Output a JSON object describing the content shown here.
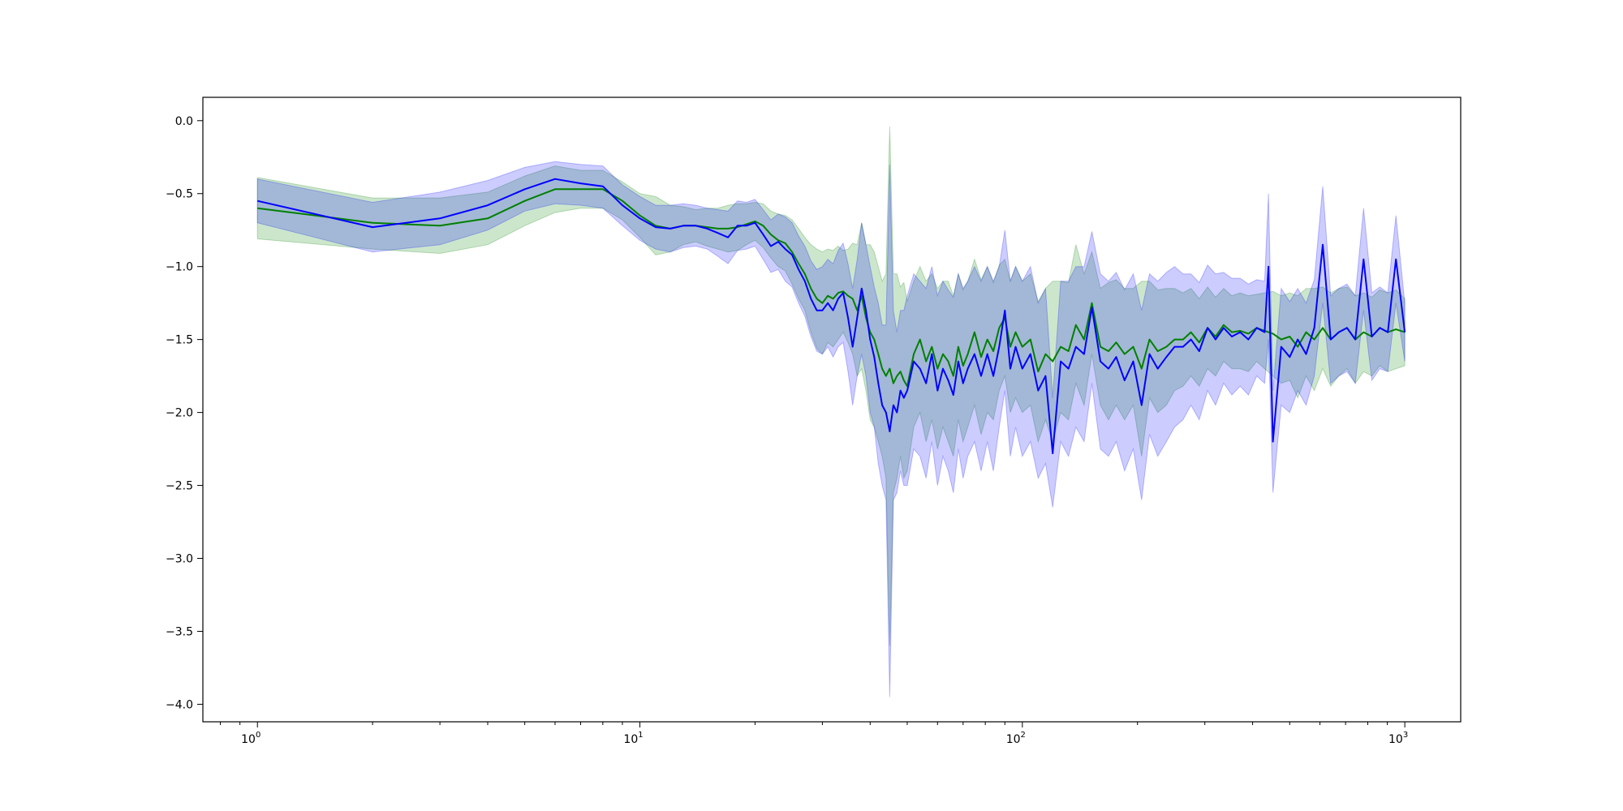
{
  "chart_data": {
    "type": "line",
    "title": "",
    "xlabel": "",
    "ylabel": "",
    "x_scale": "log",
    "xlim": [
      0.72,
      1400
    ],
    "ylim": [
      -4.12,
      0.16
    ],
    "grid": false,
    "x_ticks": [
      {
        "value": 1,
        "base": "10",
        "exp": "0"
      },
      {
        "value": 10,
        "base": "10",
        "exp": "1"
      },
      {
        "value": 100,
        "base": "10",
        "exp": "2"
      },
      {
        "value": 1000,
        "base": "10",
        "exp": "3"
      }
    ],
    "y_ticks": [
      {
        "value": 0.0,
        "label": "0.0"
      },
      {
        "value": -0.5,
        "label": "−0.5"
      },
      {
        "value": -1.0,
        "label": "−1.0"
      },
      {
        "value": -1.5,
        "label": "−1.5"
      },
      {
        "value": -2.0,
        "label": "−2.0"
      },
      {
        "value": -2.5,
        "label": "−2.5"
      },
      {
        "value": -3.0,
        "label": "−3.0"
      },
      {
        "value": -3.5,
        "label": "−3.5"
      },
      {
        "value": -4.0,
        "label": "−4.0"
      }
    ],
    "series": [
      {
        "color": "#008000",
        "band_color": "#008000",
        "band_opacity": 0.2,
        "x": [
          1,
          2,
          3,
          4,
          5,
          6,
          7,
          8,
          9,
          10,
          11,
          12,
          13,
          14,
          15,
          16,
          17,
          18,
          19,
          20,
          21,
          22,
          23,
          24,
          25,
          26,
          27,
          28,
          29,
          30,
          31,
          32,
          33,
          34,
          35,
          36,
          37,
          38,
          39,
          40,
          41,
          42,
          43,
          44,
          45,
          46,
          47,
          48,
          49,
          50,
          52,
          54,
          56,
          58,
          60,
          62,
          64,
          66,
          68,
          70,
          72,
          75,
          78,
          81,
          84,
          87,
          90,
          93,
          96,
          100,
          105,
          110,
          115,
          120,
          126,
          132,
          138,
          145,
          152,
          160,
          168,
          176,
          185,
          195,
          205,
          215,
          226,
          238,
          250,
          263,
          276,
          290,
          305,
          320,
          336,
          353,
          371,
          390,
          410,
          430,
          452,
          475,
          500,
          525,
          552,
          580,
          610,
          640,
          672,
          706,
          742,
          780,
          820,
          860,
          903,
          948,
          1000
        ],
        "y": [
          -0.6,
          -0.7,
          -0.72,
          -0.67,
          -0.55,
          -0.47,
          -0.47,
          -0.47,
          -0.55,
          -0.65,
          -0.72,
          -0.74,
          -0.72,
          -0.72,
          -0.73,
          -0.74,
          -0.74,
          -0.73,
          -0.71,
          -0.69,
          -0.72,
          -0.78,
          -0.82,
          -0.84,
          -0.9,
          -0.98,
          -1.05,
          -1.15,
          -1.22,
          -1.25,
          -1.2,
          -1.22,
          -1.18,
          -1.17,
          -1.2,
          -1.22,
          -1.3,
          -1.2,
          -1.35,
          -1.45,
          -1.5,
          -1.6,
          -1.7,
          -1.75,
          -1.7,
          -1.8,
          -1.75,
          -1.72,
          -1.78,
          -1.82,
          -1.6,
          -1.5,
          -1.65,
          -1.55,
          -1.7,
          -1.6,
          -1.65,
          -1.75,
          -1.55,
          -1.68,
          -1.6,
          -1.45,
          -1.62,
          -1.5,
          -1.58,
          -1.42,
          -1.35,
          -1.55,
          -1.45,
          -1.55,
          -1.5,
          -1.72,
          -1.6,
          -1.65,
          -1.55,
          -1.58,
          -1.4,
          -1.5,
          -1.25,
          -1.55,
          -1.58,
          -1.52,
          -1.6,
          -1.55,
          -1.7,
          -1.5,
          -1.58,
          -1.55,
          -1.5,
          -1.5,
          -1.45,
          -1.52,
          -1.42,
          -1.48,
          -1.4,
          -1.45,
          -1.44,
          -1.46,
          -1.42,
          -1.44,
          -1.46,
          -1.5,
          -1.48,
          -1.55,
          -1.45,
          -1.5,
          -1.42,
          -1.5,
          -1.45,
          -1.42,
          -1.5,
          -1.45,
          -1.48,
          -1.42,
          -1.45,
          -1.43,
          -1.45
        ],
        "lower": [
          -0.81,
          -0.88,
          -0.91,
          -0.85,
          -0.72,
          -0.63,
          -0.6,
          -0.6,
          -0.68,
          -0.8,
          -0.92,
          -0.9,
          -0.85,
          -0.83,
          -0.86,
          -0.88,
          -0.9,
          -0.89,
          -0.85,
          -0.82,
          -0.87,
          -0.94,
          -1.0,
          -1.03,
          -1.12,
          -1.22,
          -1.3,
          -1.45,
          -1.56,
          -1.6,
          -1.52,
          -1.55,
          -1.5,
          -1.45,
          -1.52,
          -1.6,
          -1.75,
          -1.7,
          -1.85,
          -2.05,
          -2.1,
          -2.2,
          -2.3,
          -2.45,
          -3.6,
          -2.55,
          -2.45,
          -2.3,
          -2.45,
          -2.4,
          -2.1,
          -2.0,
          -2.2,
          -2.05,
          -2.25,
          -2.1,
          -2.2,
          -2.3,
          -2.05,
          -2.2,
          -2.1,
          -1.95,
          -2.15,
          -2.0,
          -2.05,
          -1.85,
          -1.75,
          -2.0,
          -1.9,
          -2.0,
          -1.95,
          -2.2,
          -2.05,
          -2.2,
          -2.0,
          -2.05,
          -1.8,
          -1.95,
          -1.6,
          -1.95,
          -2.05,
          -1.95,
          -2.05,
          -1.95,
          -2.3,
          -1.9,
          -2.0,
          -1.95,
          -1.85,
          -1.82,
          -1.75,
          -1.82,
          -1.7,
          -1.75,
          -1.65,
          -1.7,
          -1.7,
          -1.72,
          -1.65,
          -1.7,
          -1.75,
          -1.8,
          -1.78,
          -1.9,
          -1.75,
          -1.85,
          -1.7,
          -1.82,
          -1.75,
          -1.7,
          -1.8,
          -1.72,
          -1.75,
          -1.68,
          -1.72,
          -1.7,
          -1.68
        ],
        "upper": [
          -0.39,
          -0.53,
          -0.53,
          -0.49,
          -0.38,
          -0.31,
          -0.34,
          -0.34,
          -0.42,
          -0.5,
          -0.52,
          -0.58,
          -0.59,
          -0.61,
          -0.6,
          -0.6,
          -0.58,
          -0.57,
          -0.57,
          -0.56,
          -0.57,
          -0.62,
          -0.64,
          -0.65,
          -0.68,
          -0.74,
          -0.8,
          -0.85,
          -0.88,
          -0.9,
          -0.88,
          -0.89,
          -0.86,
          -0.89,
          -0.88,
          -0.84,
          -0.85,
          -0.7,
          -0.85,
          -0.85,
          -0.9,
          -1.0,
          -1.1,
          -1.05,
          -0.04,
          -1.05,
          -1.05,
          -1.14,
          -1.11,
          -1.24,
          -1.1,
          -1.0,
          -1.1,
          -1.05,
          -1.15,
          -1.1,
          -1.1,
          -1.2,
          -1.05,
          -1.16,
          -1.1,
          -0.95,
          -1.09,
          -1.0,
          -1.11,
          -0.99,
          -0.95,
          -1.1,
          -1.0,
          -1.1,
          -1.05,
          -1.24,
          -1.15,
          -1.1,
          -1.1,
          -1.11,
          -0.85,
          -1.05,
          -0.9,
          -1.15,
          -1.11,
          -1.09,
          -1.15,
          -1.15,
          -1.1,
          -1.1,
          -1.16,
          -1.15,
          -1.15,
          -1.18,
          -1.15,
          -1.22,
          -1.14,
          -1.21,
          -1.15,
          -1.2,
          -1.18,
          -1.2,
          -1.19,
          -1.18,
          -1.17,
          -1.2,
          -1.18,
          -1.2,
          -1.15,
          -1.15,
          -1.14,
          -1.18,
          -1.15,
          -1.14,
          -1.2,
          -1.18,
          -1.21,
          -1.16,
          -1.18,
          -1.16,
          -1.22
        ]
      },
      {
        "color": "#0000ff",
        "band_color": "#0000ff",
        "band_opacity": 0.2,
        "x": [
          1,
          2,
          3,
          4,
          5,
          6,
          7,
          8,
          9,
          10,
          11,
          12,
          13,
          14,
          15,
          16,
          17,
          18,
          19,
          20,
          21,
          22,
          23,
          24,
          25,
          26,
          27,
          28,
          29,
          30,
          31,
          32,
          33,
          34,
          35,
          36,
          37,
          38,
          39,
          40,
          41,
          42,
          43,
          44,
          45,
          46,
          47,
          48,
          49,
          50,
          52,
          54,
          56,
          58,
          60,
          62,
          64,
          66,
          68,
          70,
          72,
          75,
          78,
          81,
          84,
          87,
          90,
          93,
          96,
          100,
          105,
          110,
          115,
          120,
          126,
          132,
          138,
          145,
          152,
          160,
          168,
          176,
          185,
          195,
          205,
          215,
          226,
          238,
          250,
          263,
          276,
          290,
          305,
          320,
          336,
          353,
          371,
          390,
          410,
          430,
          440,
          452,
          475,
          500,
          525,
          552,
          580,
          610,
          640,
          672,
          706,
          742,
          780,
          820,
          860,
          903,
          948,
          1000
        ],
        "y": [
          -0.55,
          -0.73,
          -0.67,
          -0.58,
          -0.47,
          -0.4,
          -0.43,
          -0.45,
          -0.58,
          -0.67,
          -0.73,
          -0.74,
          -0.72,
          -0.72,
          -0.74,
          -0.77,
          -0.8,
          -0.72,
          -0.72,
          -0.7,
          -0.78,
          -0.86,
          -0.83,
          -0.88,
          -0.92,
          -1.02,
          -1.1,
          -1.22,
          -1.3,
          -1.3,
          -1.25,
          -1.3,
          -1.22,
          -1.18,
          -1.35,
          -1.55,
          -1.35,
          -1.15,
          -1.3,
          -1.5,
          -1.62,
          -1.8,
          -1.95,
          -2.0,
          -2.13,
          -1.95,
          -2.0,
          -1.85,
          -1.9,
          -1.85,
          -1.65,
          -1.7,
          -1.8,
          -1.6,
          -1.85,
          -1.7,
          -1.78,
          -1.88,
          -1.65,
          -1.8,
          -1.7,
          -1.6,
          -1.75,
          -1.6,
          -1.75,
          -1.55,
          -1.3,
          -1.7,
          -1.55,
          -1.7,
          -1.6,
          -1.85,
          -1.75,
          -2.28,
          -1.65,
          -1.7,
          -1.55,
          -1.6,
          -1.28,
          -1.65,
          -1.7,
          -1.62,
          -1.78,
          -1.65,
          -1.95,
          -1.6,
          -1.7,
          -1.62,
          -1.55,
          -1.55,
          -1.5,
          -1.58,
          -1.42,
          -1.5,
          -1.42,
          -1.48,
          -1.45,
          -1.5,
          -1.42,
          -1.45,
          -1.0,
          -2.2,
          -1.55,
          -1.62,
          -1.5,
          -1.6,
          -1.42,
          -0.85,
          -1.5,
          -1.45,
          -1.42,
          -1.5,
          -0.95,
          -1.48,
          -1.42,
          -1.45,
          -0.95,
          -1.45
        ],
        "lower": [
          -0.7,
          -0.9,
          -0.85,
          -0.75,
          -0.62,
          -0.57,
          -0.58,
          -0.6,
          -0.72,
          -0.82,
          -0.88,
          -0.9,
          -0.87,
          -0.86,
          -0.88,
          -0.93,
          -0.98,
          -0.89,
          -0.88,
          -0.86,
          -0.95,
          -1.04,
          -1.02,
          -1.1,
          -1.14,
          -1.25,
          -1.34,
          -1.48,
          -1.58,
          -1.6,
          -1.55,
          -1.62,
          -1.55,
          -1.52,
          -1.72,
          -1.95,
          -1.75,
          -1.6,
          -1.75,
          -2.0,
          -2.1,
          -2.35,
          -2.5,
          -2.6,
          -3.95,
          -2.6,
          -2.55,
          -2.4,
          -2.5,
          -2.5,
          -2.25,
          -2.3,
          -2.45,
          -2.2,
          -2.5,
          -2.3,
          -2.4,
          -2.55,
          -2.25,
          -2.45,
          -2.3,
          -2.2,
          -2.4,
          -2.2,
          -2.4,
          -2.1,
          -1.85,
          -2.3,
          -2.1,
          -2.3,
          -2.2,
          -2.45,
          -2.35,
          -2.65,
          -2.2,
          -2.3,
          -2.1,
          -2.2,
          -1.8,
          -2.25,
          -2.3,
          -2.2,
          -2.4,
          -2.25,
          -2.6,
          -2.15,
          -2.3,
          -2.2,
          -2.1,
          -2.05,
          -1.95,
          -2.05,
          -1.85,
          -1.95,
          -1.8,
          -1.88,
          -1.82,
          -1.88,
          -1.75,
          -1.8,
          -1.5,
          -2.55,
          -1.95,
          -2.0,
          -1.85,
          -1.95,
          -1.75,
          -1.25,
          -1.8,
          -1.75,
          -1.72,
          -1.8,
          -1.3,
          -1.78,
          -1.7,
          -1.72,
          -1.25,
          -1.65
        ],
        "upper": [
          -0.4,
          -0.56,
          -0.49,
          -0.41,
          -0.32,
          -0.28,
          -0.3,
          -0.31,
          -0.44,
          -0.52,
          -0.58,
          -0.58,
          -0.57,
          -0.58,
          -0.6,
          -0.61,
          -0.62,
          -0.55,
          -0.56,
          -0.54,
          -0.61,
          -0.68,
          -0.64,
          -0.66,
          -0.7,
          -0.79,
          -0.86,
          -0.96,
          -1.02,
          -1.0,
          -0.95,
          -0.98,
          -0.89,
          -0.84,
          -0.98,
          -1.15,
          -0.95,
          -0.7,
          -0.85,
          -1.0,
          -1.14,
          -1.25,
          -1.4,
          -1.4,
          -0.3,
          -1.3,
          -1.45,
          -1.3,
          -1.3,
          -1.2,
          -1.05,
          -1.1,
          -1.15,
          -1.0,
          -1.2,
          -1.1,
          -1.16,
          -1.21,
          -1.05,
          -1.15,
          -1.1,
          -1.0,
          -1.1,
          -1.0,
          -1.1,
          -1.0,
          -0.75,
          -1.1,
          -1.0,
          -1.1,
          -1.0,
          -1.25,
          -1.15,
          -1.9,
          -1.1,
          -1.1,
          -1.0,
          -1.0,
          -0.76,
          -1.05,
          -1.1,
          -1.04,
          -1.16,
          -1.05,
          -1.3,
          -1.05,
          -1.1,
          -1.04,
          -1.0,
          -1.05,
          -1.05,
          -1.11,
          -0.99,
          -1.05,
          -1.04,
          -1.08,
          -1.08,
          -1.12,
          -1.09,
          -1.1,
          -0.5,
          -1.85,
          -1.15,
          -1.24,
          -1.15,
          -1.25,
          -1.09,
          -0.45,
          -1.2,
          -1.15,
          -1.12,
          -1.2,
          -0.6,
          -1.18,
          -1.14,
          -1.18,
          -0.65,
          -1.25
        ]
      }
    ]
  }
}
